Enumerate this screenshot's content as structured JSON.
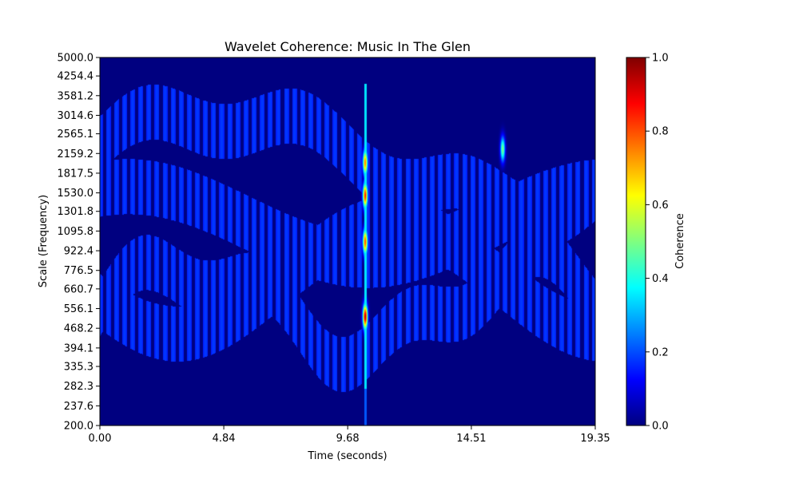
{
  "chart_data": {
    "type": "heatmap",
    "title": "Wavelet Coherence: Music In The Glen",
    "xlabel": "Time (seconds)",
    "ylabel": "Scale (Frequency)",
    "x_ticks": [
      "0.00",
      "4.84",
      "9.68",
      "14.51",
      "19.35"
    ],
    "x_tick_values": [
      0.0,
      4.84,
      9.68,
      14.51,
      19.35
    ],
    "xlim": [
      0.0,
      19.35
    ],
    "y_ticks": [
      "200.0",
      "237.6",
      "282.3",
      "335.3",
      "394.1",
      "468.2",
      "556.1",
      "660.7",
      "776.5",
      "922.4",
      "1095.8",
      "1301.8",
      "1530.0",
      "1817.5",
      "2159.2",
      "2565.1",
      "3014.6",
      "3581.2",
      "4254.4",
      "5000.0"
    ],
    "ylim": [
      200.0,
      5000.0
    ],
    "colorbar": {
      "label": "Coherence",
      "ticks": [
        "0.0",
        "0.2",
        "0.4",
        "0.6",
        "0.8",
        "1.0"
      ],
      "tick_values": [
        0.0,
        0.2,
        0.4,
        0.6,
        0.8,
        1.0
      ],
      "range": [
        0.0,
        1.0
      ],
      "colormap": "jet"
    },
    "background_value": 0.0,
    "pattern": {
      "band_value": 0.18,
      "spike_time": 10.35,
      "spike_value": 0.35,
      "hotspots": [
        {
          "time": 10.35,
          "scale": 2000.0,
          "value": 0.75
        },
        {
          "time": 10.35,
          "scale": 1500.0,
          "value": 0.85
        },
        {
          "time": 10.35,
          "scale": 1000.0,
          "value": 0.8
        },
        {
          "time": 10.35,
          "scale": 520.0,
          "value": 0.95
        },
        {
          "time": 15.72,
          "scale": 2250.0,
          "value": 0.5
        }
      ]
    }
  }
}
